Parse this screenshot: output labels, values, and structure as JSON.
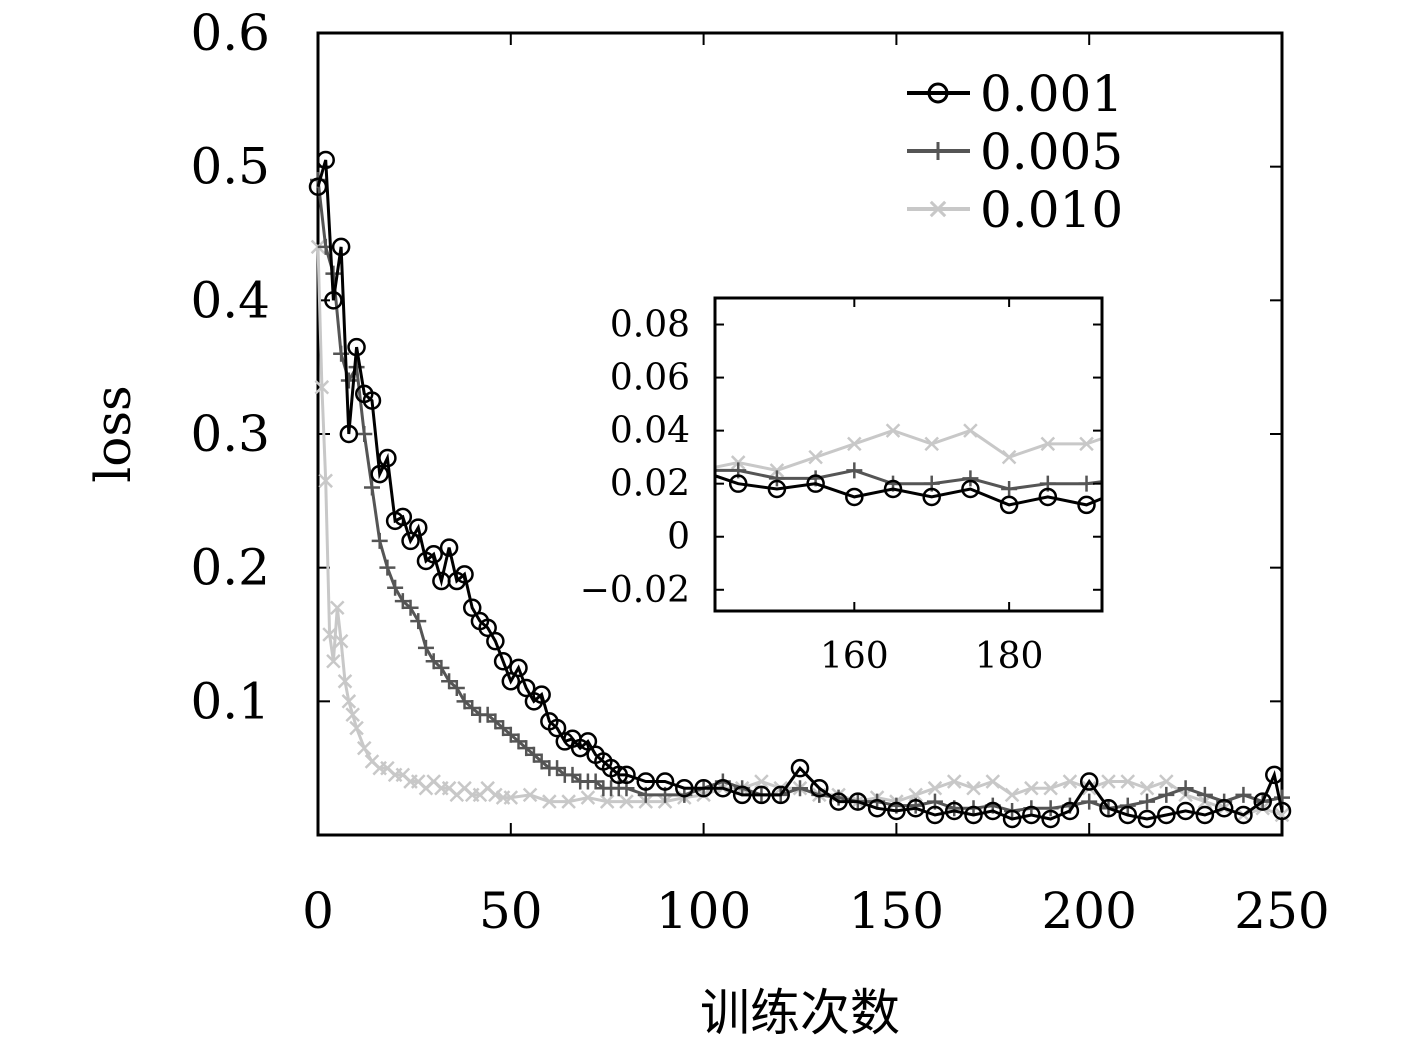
{
  "chart_data": {
    "type": "line",
    "xlabel": "训练次数",
    "ylabel": "loss",
    "xlim": [
      0,
      250
    ],
    "ylim": [
      0,
      0.6
    ],
    "xticks": [
      0,
      50,
      100,
      150,
      200,
      250
    ],
    "xtick_labels": [
      "0",
      "50",
      "100",
      "150",
      "200",
      "250"
    ],
    "yticks": [
      0.1,
      0.2,
      0.3,
      0.4,
      0.5,
      0.6
    ],
    "ytick_labels": [
      "0.1",
      "0.2",
      "0.3",
      "0.4",
      "0.5",
      "0.6"
    ],
    "legend_position": "top-right",
    "grid": false,
    "series": [
      {
        "name": "0.001",
        "color": "#000000",
        "marker": "circle",
        "x": [
          0,
          2,
          4,
          6,
          8,
          10,
          12,
          14,
          16,
          18,
          20,
          22,
          24,
          26,
          28,
          30,
          32,
          34,
          36,
          38,
          40,
          42,
          44,
          46,
          48,
          50,
          52,
          54,
          56,
          58,
          60,
          62,
          64,
          66,
          68,
          70,
          72,
          74,
          76,
          78,
          80,
          85,
          90,
          95,
          100,
          105,
          110,
          115,
          120,
          125,
          130,
          135,
          140,
          145,
          150,
          155,
          160,
          165,
          170,
          175,
          180,
          185,
          190,
          195,
          200,
          205,
          210,
          215,
          220,
          225,
          230,
          235,
          240,
          245,
          248,
          250
        ],
        "y": [
          0.485,
          0.505,
          0.4,
          0.44,
          0.3,
          0.365,
          0.33,
          0.325,
          0.27,
          0.282,
          0.235,
          0.238,
          0.22,
          0.23,
          0.205,
          0.21,
          0.19,
          0.215,
          0.19,
          0.195,
          0.17,
          0.16,
          0.155,
          0.145,
          0.13,
          0.115,
          0.125,
          0.11,
          0.1,
          0.105,
          0.085,
          0.08,
          0.07,
          0.072,
          0.065,
          0.07,
          0.06,
          0.055,
          0.05,
          0.045,
          0.045,
          0.04,
          0.04,
          0.035,
          0.035,
          0.035,
          0.03,
          0.03,
          0.03,
          0.05,
          0.035,
          0.025,
          0.025,
          0.02,
          0.018,
          0.02,
          0.015,
          0.018,
          0.015,
          0.018,
          0.012,
          0.015,
          0.012,
          0.018,
          0.04,
          0.02,
          0.015,
          0.012,
          0.015,
          0.018,
          0.015,
          0.02,
          0.015,
          0.025,
          0.045,
          0.018
        ]
      },
      {
        "name": "0.005",
        "color": "#555555",
        "marker": "plus",
        "x": [
          0,
          2,
          4,
          6,
          8,
          10,
          12,
          14,
          16,
          18,
          20,
          22,
          24,
          26,
          28,
          30,
          32,
          34,
          36,
          38,
          40,
          42,
          44,
          46,
          48,
          50,
          52,
          54,
          56,
          58,
          60,
          62,
          64,
          66,
          68,
          70,
          72,
          74,
          76,
          78,
          80,
          85,
          90,
          95,
          100,
          105,
          110,
          115,
          120,
          125,
          130,
          135,
          140,
          145,
          150,
          155,
          160,
          165,
          170,
          175,
          180,
          185,
          190,
          195,
          200,
          205,
          210,
          215,
          220,
          225,
          230,
          235,
          240,
          245,
          250
        ],
        "y": [
          0.49,
          0.44,
          0.42,
          0.36,
          0.34,
          0.35,
          0.3,
          0.26,
          0.22,
          0.2,
          0.185,
          0.175,
          0.17,
          0.16,
          0.14,
          0.13,
          0.125,
          0.115,
          0.11,
          0.1,
          0.095,
          0.09,
          0.09,
          0.085,
          0.08,
          0.075,
          0.07,
          0.065,
          0.06,
          0.055,
          0.05,
          0.05,
          0.045,
          0.045,
          0.04,
          0.04,
          0.04,
          0.035,
          0.035,
          0.035,
          0.035,
          0.03,
          0.03,
          0.03,
          0.035,
          0.04,
          0.035,
          0.03,
          0.03,
          0.035,
          0.03,
          0.028,
          0.025,
          0.025,
          0.022,
          0.022,
          0.025,
          0.02,
          0.02,
          0.022,
          0.018,
          0.02,
          0.02,
          0.022,
          0.025,
          0.02,
          0.022,
          0.025,
          0.03,
          0.035,
          0.03,
          0.025,
          0.03,
          0.025,
          0.028
        ]
      },
      {
        "name": "0.010",
        "color": "#c8c8c8",
        "marker": "x",
        "x": [
          0,
          1,
          2,
          3,
          4,
          5,
          6,
          7,
          8,
          9,
          10,
          12,
          14,
          16,
          18,
          20,
          22,
          24,
          26,
          28,
          30,
          32,
          34,
          36,
          38,
          40,
          42,
          44,
          46,
          48,
          50,
          55,
          60,
          65,
          70,
          75,
          80,
          85,
          90,
          95,
          100,
          105,
          110,
          115,
          120,
          125,
          130,
          135,
          140,
          145,
          150,
          155,
          160,
          165,
          170,
          175,
          180,
          185,
          190,
          195,
          200,
          205,
          210,
          215,
          220,
          225,
          230,
          235,
          240,
          245,
          250
        ],
        "y": [
          0.44,
          0.335,
          0.265,
          0.15,
          0.13,
          0.17,
          0.145,
          0.115,
          0.1,
          0.09,
          0.08,
          0.065,
          0.055,
          0.05,
          0.05,
          0.045,
          0.045,
          0.04,
          0.04,
          0.035,
          0.04,
          0.035,
          0.035,
          0.03,
          0.035,
          0.03,
          0.03,
          0.035,
          0.03,
          0.028,
          0.028,
          0.03,
          0.025,
          0.025,
          0.028,
          0.025,
          0.025,
          0.025,
          0.025,
          0.028,
          0.03,
          0.035,
          0.035,
          0.04,
          0.035,
          0.035,
          0.03,
          0.03,
          0.025,
          0.028,
          0.025,
          0.03,
          0.035,
          0.04,
          0.035,
          0.04,
          0.03,
          0.035,
          0.035,
          0.04,
          0.035,
          0.04,
          0.04,
          0.035,
          0.04,
          0.03,
          0.025,
          0.02,
          0.015,
          0.02,
          0.015
        ]
      }
    ],
    "inset": {
      "xlim": [
        142,
        192
      ],
      "ylim": [
        -0.028,
        0.09
      ],
      "xticks": [
        160,
        180
      ],
      "xtick_labels": [
        "160",
        "180"
      ],
      "yticks": [
        -0.02,
        0,
        0.02,
        0.04,
        0.06,
        0.08
      ],
      "ytick_labels": [
        "−0.02",
        "0",
        "0.02",
        "0.04",
        "0.06",
        "0.08"
      ]
    }
  }
}
